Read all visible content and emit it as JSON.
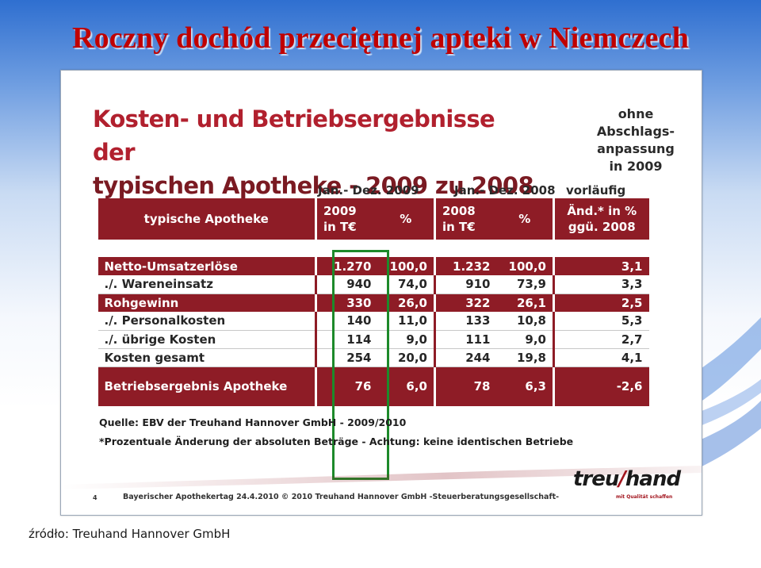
{
  "slide": {
    "title": "Roczny dochód przeciętnej apteki w Niemczech",
    "source_caption": "źródło: Treuhand Hannover GmbH"
  },
  "document": {
    "title_line1": "Kosten- und Betriebsergebnisse der",
    "title_line2": "typischen Apotheke - 2009 zu 2008",
    "note": [
      "ohne",
      "Abschlags-",
      "anpassung",
      "in 2009"
    ],
    "period_2009": "Jan.- Dez. 2009",
    "period_2008": "Jan.- Dez. 2008",
    "period_prelim": "vorläufig",
    "table": {
      "headers": {
        "label": "typische Apotheke",
        "y2009_line1": "2009",
        "y2009_line2": "in T€",
        "pct1": "%",
        "y2008_line1": "2008",
        "y2008_line2": "in T€",
        "pct2": "%",
        "chg_line1": "Änd.* in %",
        "chg_line2": "ggü. 2008"
      },
      "rows": [
        {
          "label": "Netto-Umsatzerlöse",
          "v2009": "1.270",
          "p2009": "100,0",
          "v2008": "1.232",
          "p2008": "100,0",
          "chg": "3,1"
        },
        {
          "label": "./. Wareneinsatz",
          "v2009": "940",
          "p2009": "74,0",
          "v2008": "910",
          "p2008": "73,9",
          "chg": "3,3"
        },
        {
          "label": "Rohgewinn",
          "v2009": "330",
          "p2009": "26,0",
          "v2008": "322",
          "p2008": "26,1",
          "chg": "2,5"
        },
        {
          "label": "./. Personalkosten",
          "v2009": "140",
          "p2009": "11,0",
          "v2008": "133",
          "p2008": "10,8",
          "chg": "5,3"
        },
        {
          "label": "./. übrige Kosten",
          "v2009": "114",
          "p2009": "9,0",
          "v2008": "111",
          "p2008": "9,0",
          "chg": "2,7"
        },
        {
          "label": "Kosten gesamt",
          "v2009": "254",
          "p2009": "20,0",
          "v2008": "244",
          "p2008": "19,8",
          "chg": "4,1"
        },
        {
          "label": "Betriebsergebnis Apotheke",
          "v2009": "76",
          "p2009": "6,0",
          "v2008": "78",
          "p2008": "6,3",
          "chg": "-2,6"
        }
      ]
    },
    "source_line": "Quelle: EBV der Treuhand Hannover GmbH - 2009/2010",
    "footnote": "*Prozentuale Änderung der absoluten Beträge - Achtung: keine identischen Betriebe",
    "page_number": "4",
    "footer_text": "Bayerischer Apothekertag 24.4.2010 © 2010 Treuhand Hannover GmbH -Steuerberatungsgesellschaft-",
    "logo_part1": "treu",
    "logo_part2": "hand",
    "logo_tagline": "mit Qualität schaffen"
  },
  "colors": {
    "title_red": "#c00000",
    "table_red": "#8e1c26",
    "highlight_green": "#1d8a2a"
  }
}
